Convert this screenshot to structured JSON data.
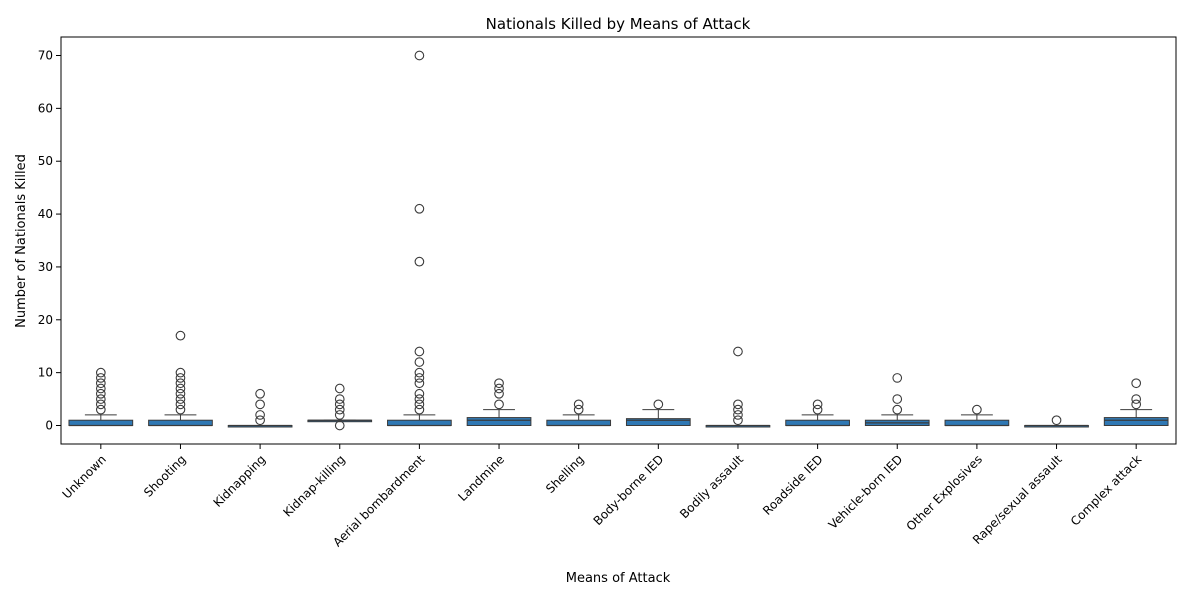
{
  "chart_data": {
    "type": "box",
    "title": "Nationals Killed by Means of Attack",
    "xlabel": "Means of Attack",
    "ylabel": "Number of Nationals Killed",
    "ylim": [
      -3.5,
      73.5
    ],
    "yticks": [
      0,
      10,
      20,
      30,
      40,
      50,
      60,
      70
    ],
    "grid": false,
    "color": "#2f78b4",
    "categories": [
      "Unknown",
      "Shooting",
      "Kidnapping",
      "Kidnap-killing",
      "Aerial bombardment",
      "Landmine",
      "Shelling",
      "Body-borne IED",
      "Bodily assault",
      "Roadside IED",
      "Vehicle-born IED",
      "Other Explosives",
      "Rape/sexual assault",
      "Complex attack"
    ],
    "boxes": [
      {
        "category": "Unknown",
        "q1": 0,
        "median": 0,
        "q3": 1,
        "whisker_low": 0,
        "whisker_high": 2,
        "outliers": [
          3,
          4,
          5,
          6,
          7,
          8,
          9,
          10
        ]
      },
      {
        "category": "Shooting",
        "q1": 0,
        "median": 0,
        "q3": 1,
        "whisker_low": 0,
        "whisker_high": 2,
        "outliers": [
          3,
          4,
          5,
          6,
          7,
          8,
          9,
          10,
          17
        ]
      },
      {
        "category": "Kidnapping",
        "q1": 0,
        "median": 0,
        "q3": 0,
        "whisker_low": 0,
        "whisker_high": 0,
        "outliers": [
          1,
          2,
          4,
          6
        ]
      },
      {
        "category": "Kidnap-killing",
        "q1": 1,
        "median": 1,
        "q3": 1,
        "whisker_low": 1,
        "whisker_high": 1,
        "outliers": [
          0,
          2,
          3,
          4,
          5,
          7
        ]
      },
      {
        "category": "Aerial bombardment",
        "q1": 0,
        "median": 0,
        "q3": 1,
        "whisker_low": 0,
        "whisker_high": 2,
        "outliers": [
          3,
          4,
          5,
          6,
          8,
          9,
          10,
          12,
          14,
          31,
          41,
          70
        ]
      },
      {
        "category": "Landmine",
        "q1": 0,
        "median": 1,
        "q3": 1.5,
        "whisker_low": 0,
        "whisker_high": 3,
        "outliers": [
          4,
          6,
          7,
          8
        ]
      },
      {
        "category": "Shelling",
        "q1": 0,
        "median": 0,
        "q3": 1,
        "whisker_low": 0,
        "whisker_high": 2,
        "outliers": [
          3,
          4
        ]
      },
      {
        "category": "Body-borne IED",
        "q1": 0,
        "median": 1,
        "q3": 1.3,
        "whisker_low": 0,
        "whisker_high": 3,
        "outliers": [
          4
        ]
      },
      {
        "category": "Bodily assault",
        "q1": 0,
        "median": 0,
        "q3": 0,
        "whisker_low": 0,
        "whisker_high": 0,
        "outliers": [
          1,
          2,
          3,
          4,
          14
        ]
      },
      {
        "category": "Roadside IED",
        "q1": 0,
        "median": 0,
        "q3": 1,
        "whisker_low": 0,
        "whisker_high": 2,
        "outliers": [
          3,
          4
        ]
      },
      {
        "category": "Vehicle-born IED",
        "q1": 0,
        "median": 0.5,
        "q3": 1,
        "whisker_low": 0,
        "whisker_high": 2,
        "outliers": [
          3,
          5,
          9
        ]
      },
      {
        "category": "Other Explosives",
        "q1": 0,
        "median": 0,
        "q3": 1,
        "whisker_low": 0,
        "whisker_high": 2,
        "outliers": [
          3
        ]
      },
      {
        "category": "Rape/sexual assault",
        "q1": 0,
        "median": 0,
        "q3": 0,
        "whisker_low": 0,
        "whisker_high": 0,
        "outliers": [
          1
        ]
      },
      {
        "category": "Complex attack",
        "q1": 0,
        "median": 1,
        "q3": 1.5,
        "whisker_low": 0,
        "whisker_high": 3,
        "outliers": [
          4,
          5,
          8
        ]
      }
    ]
  }
}
